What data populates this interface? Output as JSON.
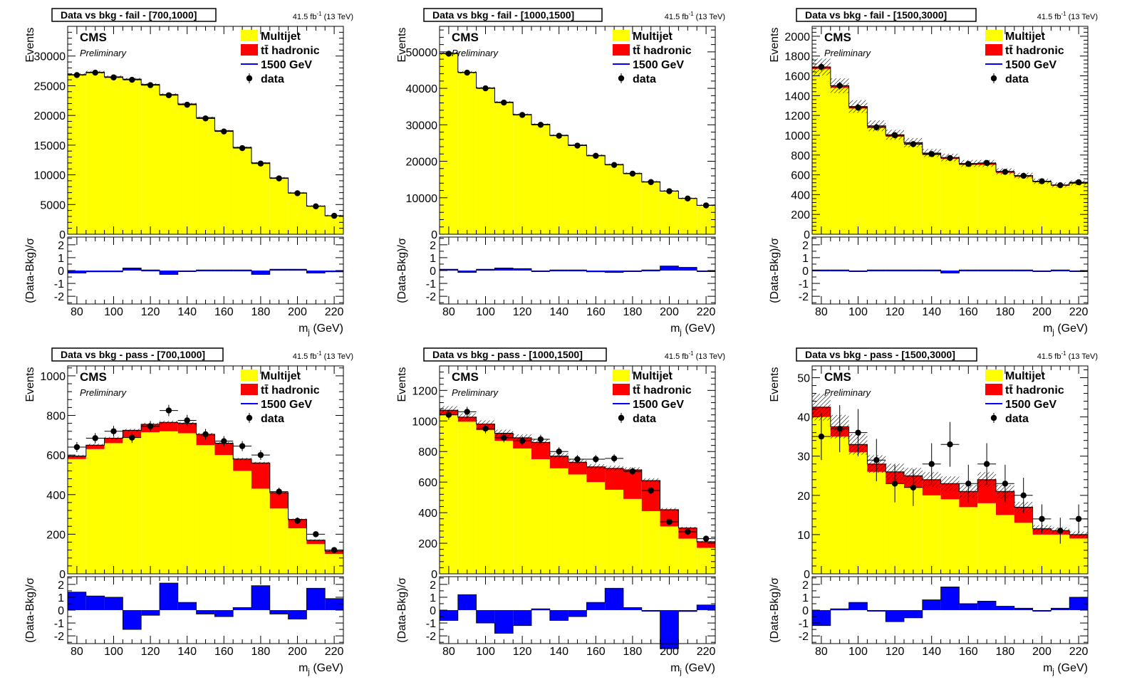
{
  "colors": {
    "multijet": "#ffff00",
    "ttbar": "#ff0000",
    "signal": "#0000ff",
    "data": "#000000",
    "pull": "#0000ff"
  },
  "common": {
    "cms_label": "CMS",
    "preliminary_label": "Preliminary",
    "lumi_label": "41.5 fb",
    "lumi_sup": "-1",
    "lumi_energy": " (13 TeV)",
    "xlabel": "m",
    "xlabel_sub": "j",
    "xlabel_unit": " (GeV)",
    "ylabel": "Events",
    "ratio_ylabel": "(Data-Bkg)/σ",
    "legend": {
      "multijet": "Multijet",
      "ttbar": "tt̄ hadronic",
      "signal": "1500 GeV",
      "data": "data"
    },
    "x_edges": [
      75,
      85,
      95,
      105,
      115,
      125,
      135,
      145,
      155,
      165,
      175,
      185,
      195,
      205,
      215,
      225
    ],
    "x_centers": [
      80,
      90,
      100,
      110,
      120,
      130,
      140,
      150,
      160,
      170,
      180,
      190,
      200,
      210,
      220
    ],
    "xticks": [
      80,
      100,
      120,
      140,
      160,
      180,
      200,
      220
    ],
    "xlim": [
      75,
      225
    ],
    "ratio_ylim": [
      -2.6,
      2.6
    ],
    "ratio_yticks": [
      -2,
      -1,
      0,
      1,
      2
    ]
  },
  "chart_data": [
    {
      "type": "bar",
      "title": "Data vs bkg - fail - [700,1000]",
      "ylim": [
        0,
        35000
      ],
      "yticks": [
        0,
        5000,
        10000,
        15000,
        20000,
        25000,
        30000
      ],
      "ytick_labels": [
        "0",
        "5000",
        "10000",
        "15000",
        "20000",
        "25000",
        "30000"
      ],
      "series": [
        {
          "name": "Multijet",
          "values": [
            26800,
            27200,
            26400,
            26000,
            25100,
            23400,
            21800,
            19500,
            17300,
            14500,
            11900,
            9400,
            6900,
            4700,
            3100
          ]
        },
        {
          "name": "tt̄ hadronic",
          "values": [
            80,
            90,
            100,
            110,
            120,
            130,
            140,
            140,
            130,
            120,
            110,
            90,
            70,
            50,
            30
          ]
        },
        {
          "name": "data",
          "values": [
            26800,
            27200,
            26400,
            26000,
            25100,
            23400,
            21800,
            19500,
            17300,
            14500,
            11900,
            9400,
            6900,
            4700,
            3100
          ]
        }
      ],
      "pull": [
        -0.2,
        -0.1,
        -0.1,
        0.2,
        0.05,
        -0.3,
        -0.05,
        0.05,
        0.05,
        0.05,
        -0.3,
        0.1,
        0.1,
        -0.2,
        -0.1
      ]
    },
    {
      "type": "bar",
      "title": "Data vs bkg - fail - [1000,1500]",
      "ylim": [
        0,
        57000
      ],
      "yticks": [
        0,
        10000,
        20000,
        30000,
        40000,
        50000
      ],
      "ytick_labels": [
        "0",
        "10000",
        "20000",
        "30000",
        "40000",
        "50000"
      ],
      "series": [
        {
          "name": "Multijet",
          "values": [
            49500,
            44300,
            40000,
            36100,
            32700,
            30000,
            27000,
            24300,
            21500,
            19000,
            16600,
            14300,
            11800,
            9800,
            7900
          ]
        },
        {
          "name": "tt̄ hadronic",
          "values": [
            100,
            110,
            120,
            130,
            130,
            140,
            140,
            140,
            130,
            120,
            110,
            90,
            70,
            50,
            30
          ]
        },
        {
          "name": "data",
          "values": [
            49500,
            44300,
            40000,
            36100,
            32700,
            30000,
            27000,
            24300,
            21500,
            19000,
            16600,
            14300,
            11800,
            9800,
            7900
          ]
        }
      ],
      "pull": [
        0.1,
        -0.15,
        0.1,
        0.2,
        0.15,
        -0.05,
        0.05,
        0.05,
        -0.1,
        -0.15,
        -0.05,
        0.05,
        0.35,
        0.25,
        -0.05
      ]
    },
    {
      "type": "bar",
      "title": "Data vs bkg - fail - [1500,3000]",
      "ylim": [
        0,
        2100
      ],
      "yticks": [
        0,
        200,
        400,
        600,
        800,
        1000,
        1200,
        1400,
        1600,
        1800,
        2000
      ],
      "ytick_labels": [
        "0",
        "200",
        "400",
        "600",
        "800",
        "1000",
        "1200",
        "1400",
        "1600",
        "1800",
        "2000"
      ],
      "series": [
        {
          "name": "Multijet",
          "values": [
            1670,
            1480,
            1270,
            1075,
            985,
            905,
            800,
            760,
            700,
            700,
            620,
            580,
            525,
            490,
            510
          ]
        },
        {
          "name": "tt̄ hadronic",
          "values": [
            20,
            20,
            20,
            20,
            20,
            20,
            20,
            15,
            15,
            15,
            15,
            12,
            10,
            8,
            8
          ]
        },
        {
          "name": "data",
          "values": [
            1690,
            1500,
            1280,
            1080,
            1000,
            910,
            810,
            770,
            710,
            720,
            630,
            590,
            535,
            495,
            525
          ]
        }
      ],
      "pull": [
        0.05,
        0.05,
        -0.05,
        0.05,
        0.05,
        0.05,
        0.05,
        -0.2,
        0.05,
        0.05,
        0.05,
        0.05,
        -0.05,
        0.05,
        -0.05
      ]
    },
    {
      "type": "bar",
      "title": "Data vs bkg - pass - [700,1000]",
      "ylim": [
        0,
        1050
      ],
      "yticks": [
        0,
        200,
        400,
        600,
        800,
        1000
      ],
      "ytick_labels": [
        "0",
        "200",
        "400",
        "600",
        "800",
        "1000"
      ],
      "series": [
        {
          "name": "Multijet",
          "values": [
            580,
            630,
            660,
            690,
            715,
            720,
            710,
            650,
            600,
            520,
            430,
            330,
            230,
            150,
            100
          ]
        },
        {
          "name": "tt̄ hadronic",
          "values": [
            15,
            20,
            25,
            35,
            40,
            45,
            50,
            55,
            60,
            60,
            130,
            80,
            45,
            20,
            15
          ]
        },
        {
          "name": "data",
          "values": [
            640,
            685,
            720,
            688,
            745,
            825,
            775,
            705,
            670,
            645,
            600,
            415,
            268,
            200,
            120
          ]
        }
      ],
      "pull": [
        1.4,
        1.1,
        1.0,
        -1.5,
        -0.4,
        2.1,
        0.6,
        -0.3,
        -0.5,
        0.2,
        1.9,
        -0.3,
        -0.7,
        1.7,
        0.9
      ]
    },
    {
      "type": "bar",
      "title": "Data vs bkg - pass - [1000,1500]",
      "ylim": [
        0,
        1360
      ],
      "yticks": [
        0,
        200,
        400,
        600,
        800,
        1000,
        1200
      ],
      "ytick_labels": [
        "0",
        "200",
        "400",
        "600",
        "800",
        "1000",
        "1200"
      ],
      "series": [
        {
          "name": "Multijet",
          "values": [
            1040,
            995,
            940,
            870,
            820,
            750,
            690,
            650,
            600,
            550,
            490,
            410,
            310,
            230,
            170
          ]
        },
        {
          "name": "tt̄ hadronic",
          "values": [
            30,
            30,
            40,
            50,
            70,
            110,
            80,
            80,
            100,
            140,
            190,
            200,
            110,
            70,
            40
          ]
        },
        {
          "name": "data",
          "values": [
            1040,
            1060,
            950,
            890,
            870,
            880,
            800,
            750,
            750,
            755,
            670,
            545,
            340,
            275,
            230
          ]
        }
      ],
      "pull": [
        -0.8,
        1.2,
        -1.0,
        -1.8,
        -1.2,
        0.1,
        -0.8,
        -0.5,
        0.6,
        1.7,
        0.2,
        -0.05,
        -3.0,
        -0.1,
        0.4
      ]
    },
    {
      "type": "bar",
      "title": "Data vs bkg - pass - [1500,3000]",
      "ylim": [
        0,
        53
      ],
      "yticks": [
        0,
        10,
        20,
        30,
        40,
        50
      ],
      "ytick_labels": [
        "0",
        "10",
        "20",
        "30",
        "40",
        "50"
      ],
      "series": [
        {
          "name": "Multijet",
          "values": [
            40,
            35,
            31,
            26,
            23,
            22,
            20,
            19,
            17,
            18,
            15,
            13,
            10,
            10,
            9
          ]
        },
        {
          "name": "tt̄ hadronic",
          "values": [
            2.5,
            2.5,
            2,
            2,
            3,
            3,
            4,
            4,
            4,
            6,
            6,
            4,
            1.5,
            1,
            1
          ]
        },
        {
          "name": "data",
          "values": [
            35,
            37,
            36,
            29,
            23,
            22,
            28,
            33,
            23,
            28,
            23,
            20,
            14,
            11,
            14
          ]
        },
        {
          "name": "data_err",
          "values": [
            6,
            6,
            6,
            5.4,
            4.8,
            4.7,
            5.3,
            5.7,
            4.8,
            5.3,
            4.8,
            4.5,
            3.7,
            3.3,
            3.7
          ]
        }
      ],
      "pull": [
        -1.2,
        0.1,
        0.6,
        -0.05,
        -0.9,
        -0.6,
        0.8,
        1.8,
        0.5,
        0.7,
        0.3,
        0.15,
        -0.05,
        0.15,
        1.0
      ]
    }
  ]
}
